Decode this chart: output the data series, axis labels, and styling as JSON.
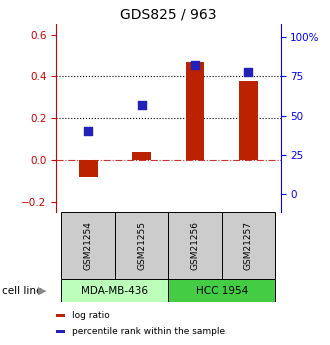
{
  "title": "GDS825 / 963",
  "samples": [
    "GSM21254",
    "GSM21255",
    "GSM21256",
    "GSM21257"
  ],
  "log_ratio": [
    -0.08,
    0.04,
    0.47,
    0.38
  ],
  "percentile_rank": [
    40,
    57,
    82,
    78
  ],
  "cell_lines": [
    {
      "label": "MDA-MB-436",
      "samples": [
        0,
        1
      ],
      "color": "#bbffbb"
    },
    {
      "label": "HCC 1954",
      "samples": [
        2,
        3
      ],
      "color": "#44cc44"
    }
  ],
  "left_ylim": [
    -0.25,
    0.65
  ],
  "left_yticks": [
    -0.2,
    0.0,
    0.2,
    0.4,
    0.6
  ],
  "right_ylim": [
    -11.67,
    108.33
  ],
  "right_yticks": [
    0,
    25,
    50,
    75,
    100
  ],
  "right_yticklabels": [
    "0",
    "25",
    "50",
    "75",
    "100%"
  ],
  "bar_color": "#bb2200",
  "dot_color": "#2222bb",
  "hline_zero_color": "#cc3333",
  "dotted_line_values": [
    0.2,
    0.4
  ],
  "bar_width": 0.35,
  "dot_size": 35,
  "sample_box_color": "#cccccc",
  "cell_line_label": "cell line",
  "legend_items": [
    {
      "label": "log ratio",
      "color": "#bb2200"
    },
    {
      "label": "percentile rank within the sample",
      "color": "#2222bb"
    }
  ]
}
